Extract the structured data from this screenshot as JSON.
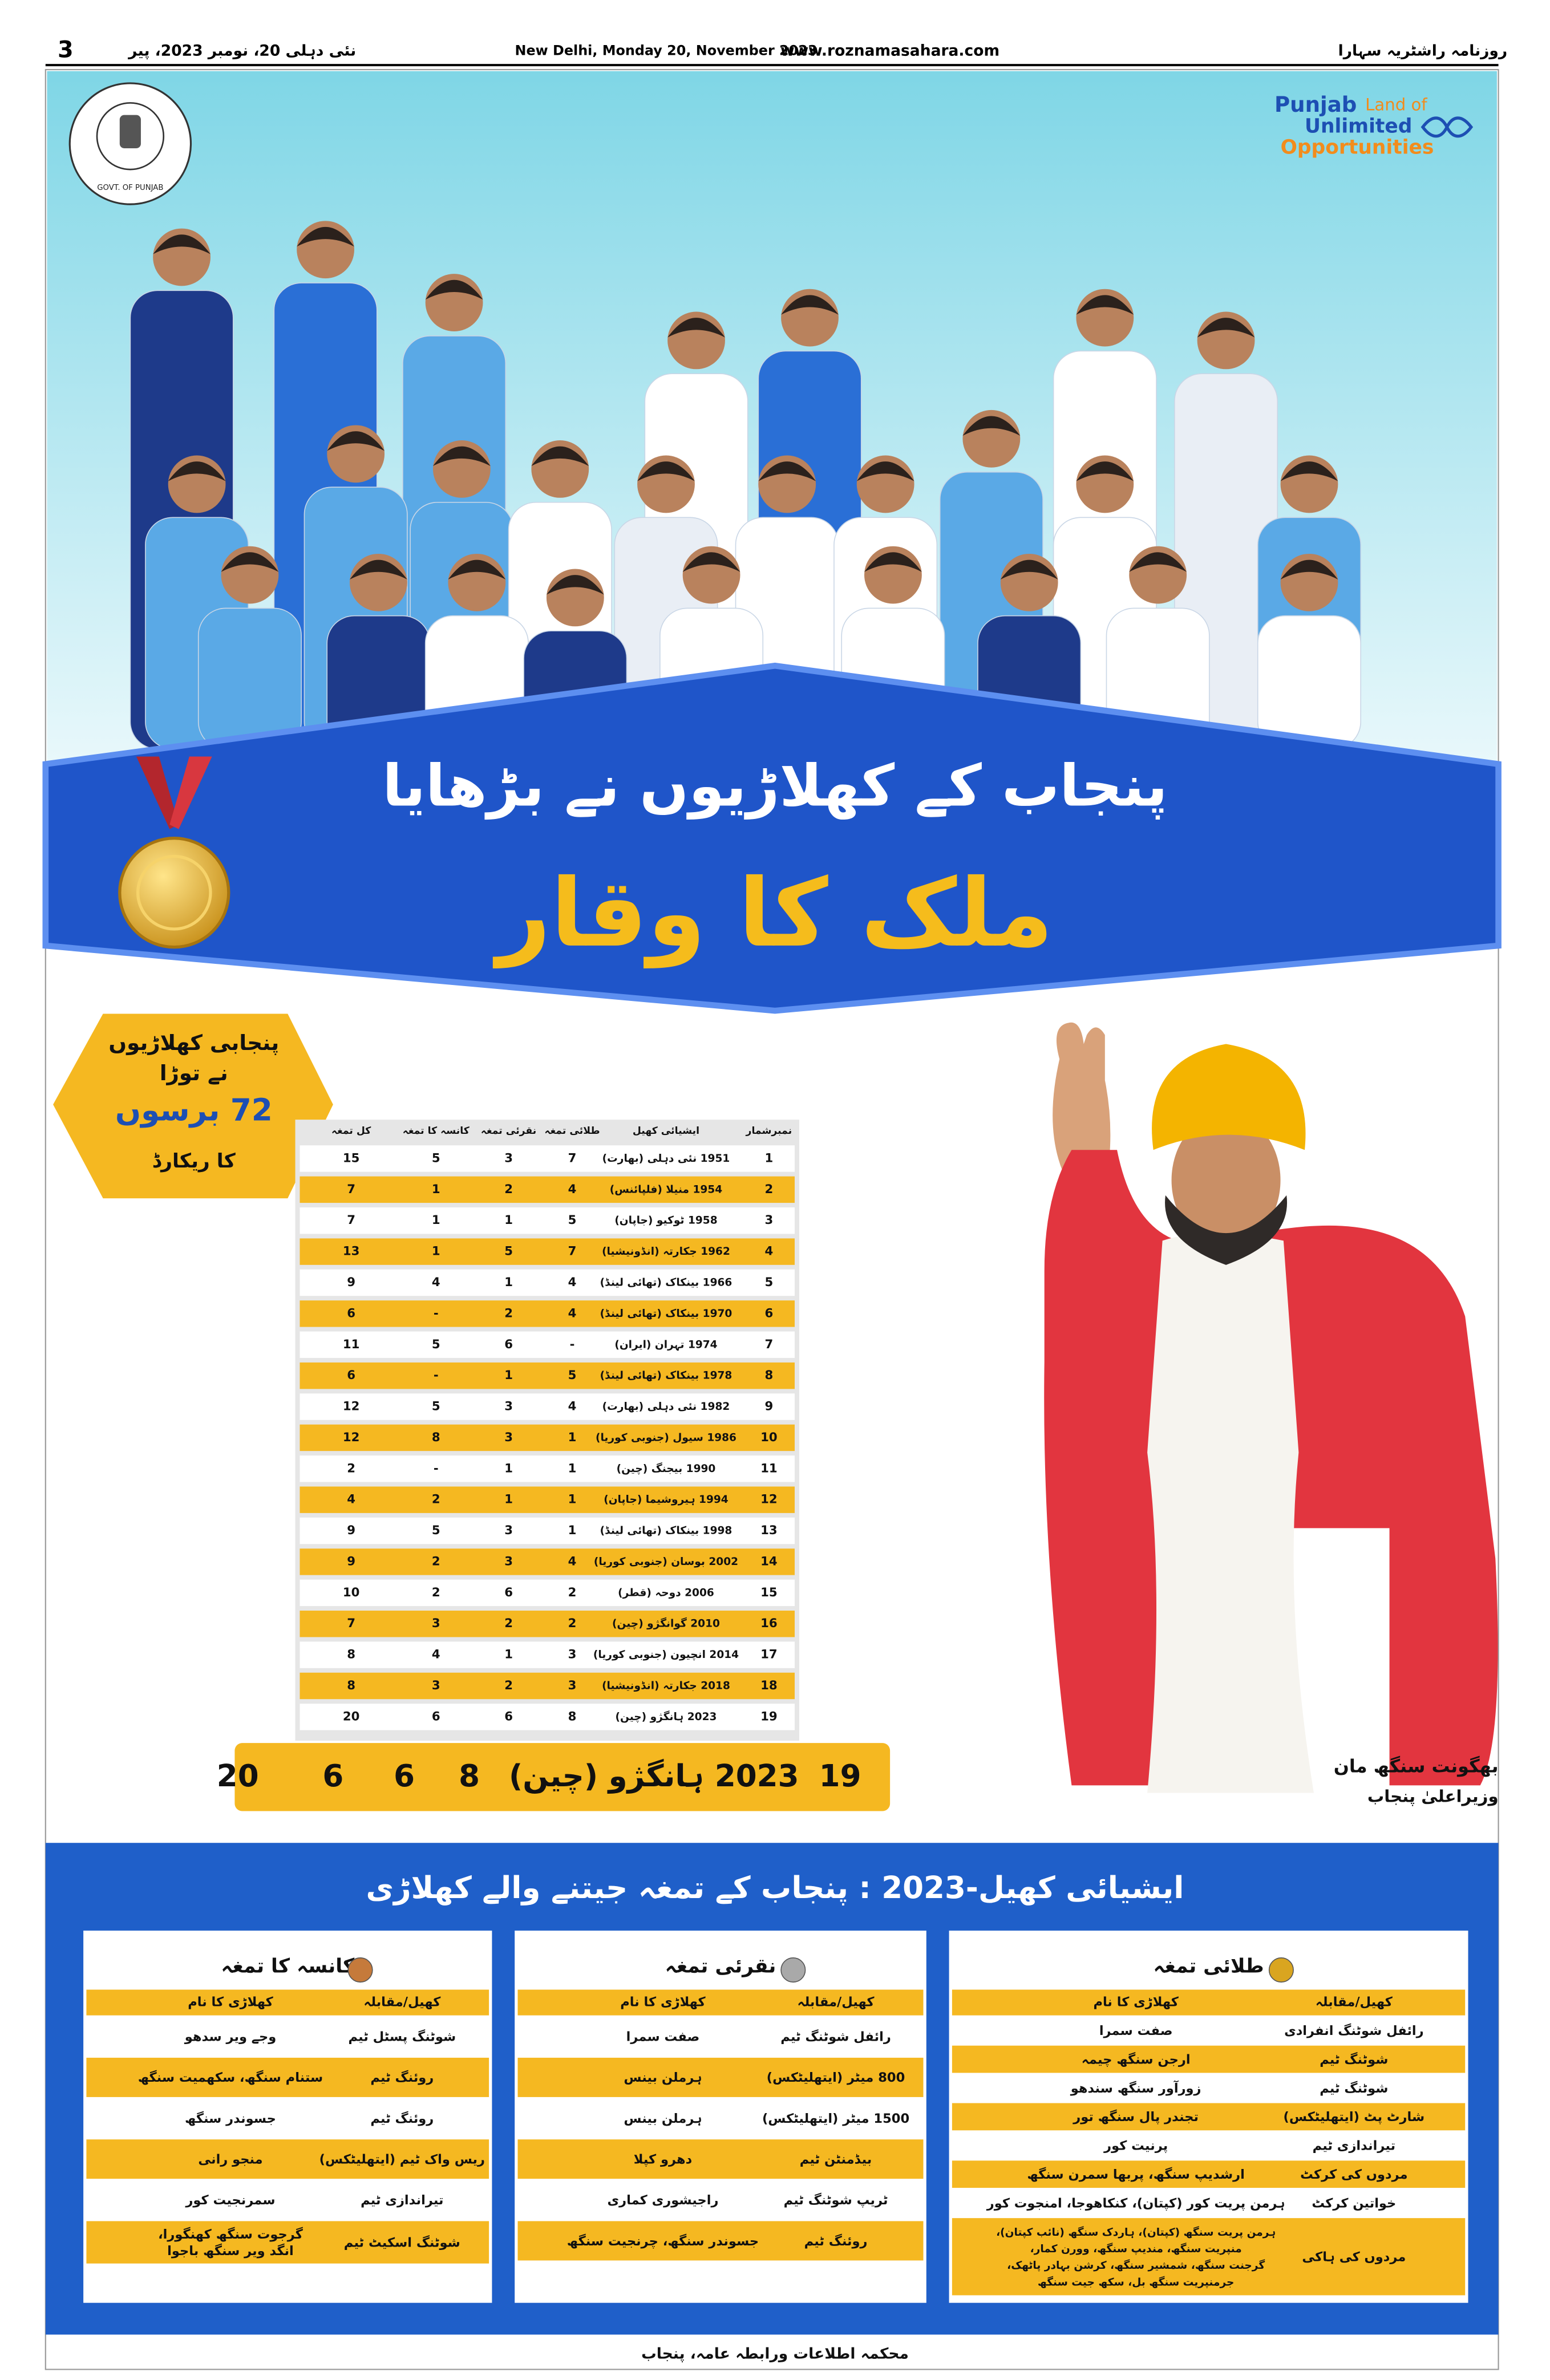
{
  "header": {
    "page_number": "3",
    "date_urdu": "نئی دہلی 20، نومبر 2023، پیر",
    "dateline": "New Delhi, Monday 20, November 2023",
    "website": "www.roznamasahara.com",
    "paper_name": "روزنامہ راشٹریہ سہارا"
  },
  "emblem": {
    "label": "GOVT. OF PUNJAB"
  },
  "brand": {
    "line1": "Punjab",
    "line1_tail": "Land of",
    "line2": "Unlimited",
    "line3": "Opportunities"
  },
  "headline": {
    "line1": "پنجاب کے کھلاڑیوں نے بڑھایا",
    "line2": "ملک کا وقار"
  },
  "badge": {
    "lines": [
      "پنجابی کھلاڑیوں",
      "نے توڑا",
      "72 برسوں",
      "کا ریکارڈ"
    ]
  },
  "record_table": {
    "columns": [
      "نمبرشمار",
      "ایشیائی کھیل",
      "طلائی تمغہ",
      "نقرئی تمغہ",
      "کانسہ کا تمغہ",
      "کل تمغہ"
    ],
    "rows": [
      [
        "1",
        "1951 نئی دہلی (بھارت)",
        "7",
        "3",
        "5",
        "15"
      ],
      [
        "2",
        "1954 منیلا (فلپائنس)",
        "4",
        "2",
        "1",
        "7"
      ],
      [
        "3",
        "1958 ٹوکیو (جاپان)",
        "5",
        "1",
        "1",
        "7"
      ],
      [
        "4",
        "1962 جکارتہ (انڈونیشیا)",
        "7",
        "5",
        "1",
        "13"
      ],
      [
        "5",
        "1966 بینکاک (تھائی لینڈ)",
        "4",
        "1",
        "4",
        "9"
      ],
      [
        "6",
        "1970 بینکاک (تھائی لینڈ)",
        "4",
        "2",
        "-",
        "6"
      ],
      [
        "7",
        "1974 تہران (ایران)",
        "-",
        "6",
        "5",
        "11"
      ],
      [
        "8",
        "1978 بینکاک (تھائی لینڈ)",
        "5",
        "1",
        "-",
        "6"
      ],
      [
        "9",
        "1982 نئی دہلی (بھارت)",
        "4",
        "3",
        "5",
        "12"
      ],
      [
        "10",
        "1986 سیول (جنوبی کوریا)",
        "1",
        "3",
        "8",
        "12"
      ],
      [
        "11",
        "1990 بیجنگ (چین)",
        "1",
        "1",
        "-",
        "2"
      ],
      [
        "12",
        "1994 ہیروشیما (جاپان)",
        "1",
        "1",
        "2",
        "4"
      ],
      [
        "13",
        "1998 بینکاک (تھائی لینڈ)",
        "1",
        "3",
        "5",
        "9"
      ],
      [
        "14",
        "2002 بوسان (جنوبی کوریا)",
        "4",
        "3",
        "2",
        "9"
      ],
      [
        "15",
        "2006 دوحہ (قطر)",
        "2",
        "6",
        "2",
        "10"
      ],
      [
        "16",
        "2010 گوانگژو (چین)",
        "2",
        "2",
        "3",
        "7"
      ],
      [
        "17",
        "2014 انچیون (جنوبی کوریا)",
        "3",
        "1",
        "4",
        "8"
      ],
      [
        "18",
        "2018 جکارتہ (انڈونیشیا)",
        "3",
        "2",
        "3",
        "8"
      ],
      [
        "19",
        "2023 ہانگژو (چین)",
        "8",
        "6",
        "6",
        "20"
      ]
    ]
  },
  "caption": {
    "name": "بھگونت سنگھ مان",
    "role": "وزیراعلیٰ پنجاب"
  },
  "winners": {
    "title": "ایشیائی کھیل-2023 : پنجاب کے تمغہ جیتنے والے کھلاڑی",
    "boxes": [
      {
        "title": "طلائی تمغہ",
        "columns": [
          "کھیل/مقابلہ",
          "کھلاڑی کا نام"
        ],
        "rows": [
          [
            "رائفل شوٹنگ انفرادی",
            [
              "صفت سمرا"
            ]
          ],
          [
            "شوٹنگ ٹیم",
            [
              "ارجن سنگھ چیمہ"
            ]
          ],
          [
            "شوٹنگ ٹیم",
            [
              "زورآور سنگھ سندھو"
            ]
          ],
          [
            "شارٹ پٹ (ایتھلیٹکس)",
            [
              "تجندر پال سنگھ تور"
            ]
          ],
          [
            "تیراندازی ٹیم",
            [
              "پرنیت کور"
            ]
          ],
          [
            "مردوں کی کرکٹ",
            [
              "ارشدیپ سنگھ، پربھا سمرن سنگھ"
            ]
          ],
          [
            "خواتین کرکٹ",
            [
              "ہرمن پریت کور (کپتان)، کنکاھوجا، امنجوت کور"
            ]
          ],
          [
            "مردوں کی ہاکی",
            [
              "ہرمن پریت سنگھ (کپتان)، ہاردک سنگھ (نائب کپتان)،",
              "منپریت سنگھ، مندیپ سنگھ، وورن کمار،",
              "گرجنت سنگھ، شمشیر سنگھ، کرشن بہادر پاٹھک،",
              "جرمنپریت سنگھ بل، سکھ جیت سنگھ"
            ]
          ]
        ]
      },
      {
        "title": "نقرئی تمغہ",
        "columns": [
          "کھیل/مقابلہ",
          "کھلاڑی کا نام"
        ],
        "rows": [
          [
            "رائفل شوٹنگ ٹیم",
            [
              "صفت سمرا"
            ]
          ],
          [
            "800 میٹر (ایتھلیٹکس)",
            [
              "ہرملن بینس"
            ]
          ],
          [
            "1500 میٹر (ایتھلیٹکس)",
            [
              "ہرملن بینس"
            ]
          ],
          [
            "بیڈمنٹن ٹیم",
            [
              "دھرو کپلا"
            ]
          ],
          [
            "ٹریپ شوٹنگ ٹیم",
            [
              "راجیشوری کماری"
            ]
          ],
          [
            "روئنگ ٹیم",
            [
              "جسوندر سنگھ، چرنجیت سنگھ"
            ]
          ]
        ]
      },
      {
        "title": "کانسہ کا تمغہ",
        "columns": [
          "کھیل/مقابلہ",
          "کھلاڑی کا نام"
        ],
        "rows": [
          [
            "شوٹنگ پسٹل ٹیم",
            [
              "وجے ویر سدھو"
            ]
          ],
          [
            "روئنگ ٹیم",
            [
              "ستنام سنگھ، سکھمیت سنگھ"
            ]
          ],
          [
            "روئنگ ٹیم",
            [
              "جسوندر سنگھ"
            ]
          ],
          [
            "ریس واک ٹیم (ایتھلیٹکس)",
            [
              "منجو رانی"
            ]
          ],
          [
            "تیراندازی ٹیم",
            [
              "سمرنجیت کور"
            ]
          ],
          [
            "شوٹنگ اسکیٹ ٹیم",
            [
              "گرجوت سنگھ کھنگورا،",
              "انگد ویر سنگھ باجوا"
            ]
          ]
        ]
      }
    ]
  },
  "footer": "محکمہ اطلاعات ورابطہ عامہ، پنجاب"
}
